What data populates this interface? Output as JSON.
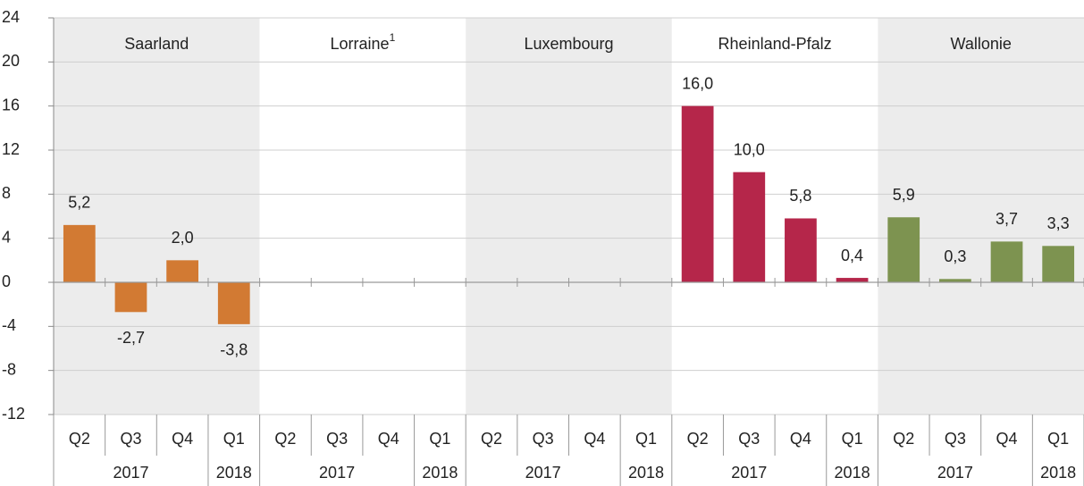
{
  "chart_data": {
    "type": "bar",
    "ylim": [
      -12,
      24
    ],
    "yticks": [
      -12,
      -8,
      -4,
      0,
      4,
      8,
      12,
      16,
      20,
      24
    ],
    "grid": true,
    "year_groups": [
      {
        "year": "2017",
        "quarters": [
          "Q2",
          "Q3",
          "Q4"
        ]
      },
      {
        "year": "2018",
        "quarters": [
          "Q1"
        ]
      }
    ],
    "series": [
      {
        "name": "Saarland",
        "color": "#d27a33",
        "values": [
          5.2,
          -2.7,
          2.0,
          -3.8
        ],
        "value_labels": [
          "5,2",
          "-2,7",
          "2,0",
          "-3,8"
        ]
      },
      {
        "name": "Lorraine",
        "footnote": "1",
        "color": "#d27a33",
        "values": [
          null,
          null,
          null,
          null
        ],
        "value_labels": [
          null,
          null,
          null,
          null
        ]
      },
      {
        "name": "Luxembourg",
        "color": "#d27a33",
        "values": [
          null,
          null,
          null,
          null
        ],
        "value_labels": [
          null,
          null,
          null,
          null
        ]
      },
      {
        "name": "Rheinland-Pfalz",
        "color": "#b5264a",
        "values": [
          16.0,
          10.0,
          5.8,
          0.4
        ],
        "value_labels": [
          "16,0",
          "10,0",
          "5,8",
          "0,4"
        ]
      },
      {
        "name": "Wallonie",
        "color": "#7d9350",
        "values": [
          5.9,
          0.3,
          3.7,
          3.3
        ],
        "value_labels": [
          "5,9",
          "0,3",
          "3,7",
          "3,3"
        ]
      }
    ]
  }
}
